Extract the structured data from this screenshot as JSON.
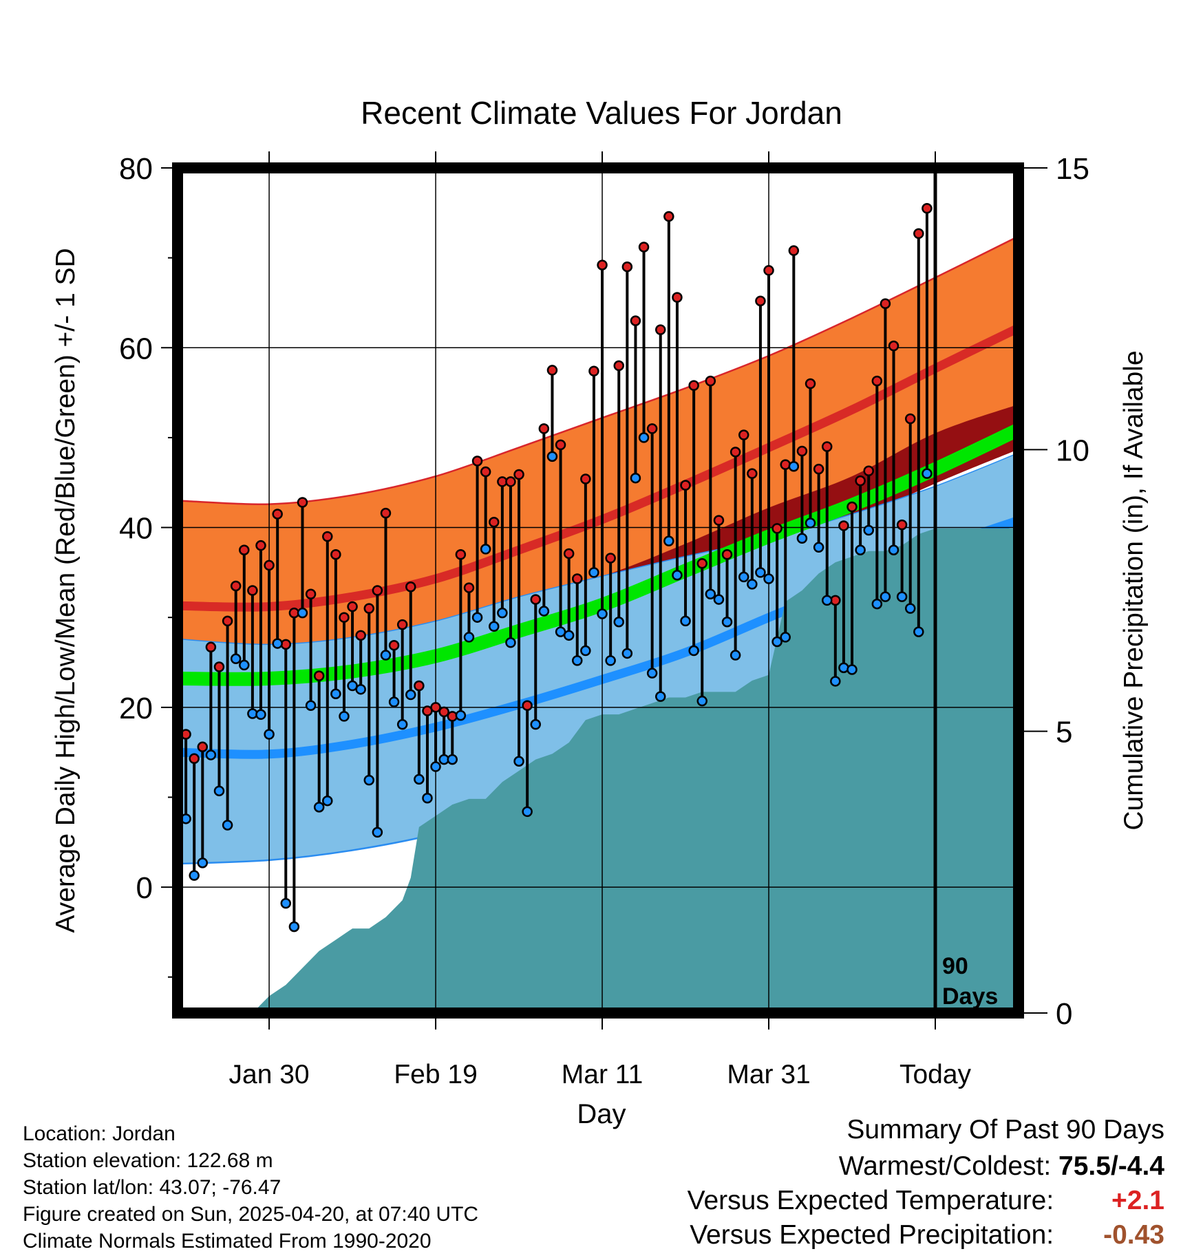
{
  "chart_data": {
    "type": "line",
    "title": "Recent Climate Values For Jordan",
    "xlabel": "Day",
    "ylabel_left": "Average Daily High/Low/Mean (Red/Blue/Green) +/- 1 SD",
    "ylabel_right": "Cumulative Precipitation (in), If Available",
    "x_ticks": [
      {
        "day": 10,
        "label": "Jan 30"
      },
      {
        "day": 30,
        "label": "Feb 19"
      },
      {
        "day": 50,
        "label": "Mar 11"
      },
      {
        "day": 70,
        "label": "Mar 31"
      },
      {
        "day": 90,
        "label": "Today"
      }
    ],
    "xlim": [
      -1,
      100
    ],
    "ylim_left": [
      -14,
      80
    ],
    "y_ticks_left": [
      "80",
      "60",
      "40",
      "20",
      "0"
    ],
    "ylim_right": [
      0,
      15
    ],
    "y_ticks_right": [
      "15",
      "10",
      "5",
      "0"
    ],
    "today_marker": {
      "day": 90,
      "label_line1": "90",
      "label_line2": "Days"
    },
    "normals": {
      "days": [
        -1,
        10,
        20,
        30,
        40,
        50,
        60,
        70,
        80,
        90,
        100
      ],
      "high_mean": [
        31.3,
        31.2,
        32.3,
        34.3,
        37.5,
        40.9,
        44.8,
        48.9,
        53.1,
        57.7,
        62.2
      ],
      "high_sd_upper": [
        43.0,
        42.6,
        43.6,
        45.7,
        48.9,
        52.2,
        55.5,
        59.1,
        63.3,
        67.8,
        72.4
      ],
      "high_sd_lower": [
        20.0,
        20.5,
        21.5,
        23.2,
        26.0,
        29.6,
        34.1,
        38.9,
        43.0,
        47.4,
        52.2
      ],
      "mean_mean": [
        23.2,
        23.2,
        24.0,
        25.7,
        28.5,
        31.4,
        35.2,
        39.0,
        42.5,
        46.5,
        50.9
      ],
      "mean_sd_upper": [
        27.6,
        27.0,
        27.8,
        29.6,
        32.3,
        34.6,
        38.2,
        42.2,
        45.7,
        50.5,
        53.7
      ],
      "mean_sd_lower": [
        20.6,
        20.7,
        21.8,
        23.7,
        26.1,
        28.6,
        33.0,
        37.1,
        40.7,
        44.9,
        48.7
      ],
      "low_mean": [
        15.0,
        14.8,
        15.9,
        17.8,
        20.3,
        23.1,
        26.1,
        30.0,
        33.8,
        37.6,
        40.8
      ],
      "low_sd_upper": [
        27.6,
        27.0,
        27.8,
        29.6,
        32.3,
        34.6,
        36.8,
        38.8,
        41.5,
        44.6,
        48.3
      ],
      "low_sd_lower": [
        2.6,
        3.0,
        4.1,
        5.9,
        8.5,
        12.3,
        16.9,
        21.2,
        25.5,
        29.8,
        34.0
      ]
    },
    "daily": {
      "start_day": 0,
      "highs": [
        17.0,
        14.3,
        15.6,
        26.7,
        24.5,
        29.6,
        33.5,
        37.5,
        33.0,
        38.0,
        35.8,
        41.5,
        27.0,
        30.5,
        42.8,
        32.6,
        23.5,
        39.0,
        37.0,
        30.0,
        31.2,
        28.0,
        31.0,
        33.0,
        41.6,
        26.9,
        29.2,
        33.4,
        22.4,
        19.6,
        20.0,
        19.5,
        19.0,
        37.0,
        33.3,
        47.4,
        46.2,
        40.6,
        45.1,
        45.1,
        45.9,
        20.2,
        32.0,
        51.0,
        57.5,
        49.2,
        37.1,
        34.3,
        45.4,
        57.4,
        69.2,
        36.6,
        58.0,
        69.0,
        63.0,
        71.2,
        51.0,
        62.0,
        74.6,
        65.6,
        44.7,
        55.8,
        36.0,
        56.3,
        40.8,
        37.0,
        48.4,
        50.3,
        46.0,
        65.2,
        68.6,
        39.9,
        47.0,
        70.8,
        48.5,
        56.0,
        46.5,
        49.0,
        31.9,
        40.2,
        42.3,
        45.2,
        46.3,
        56.3,
        64.9,
        60.2,
        40.3,
        52.1,
        72.7,
        75.5
      ],
      "lows": [
        7.6,
        1.3,
        2.7,
        14.7,
        10.7,
        6.9,
        25.4,
        24.7,
        19.3,
        19.2,
        17.0,
        27.1,
        -1.8,
        -4.4,
        30.5,
        20.2,
        8.9,
        9.6,
        21.5,
        19.0,
        22.4,
        22.0,
        11.9,
        6.1,
        25.8,
        20.6,
        18.1,
        21.4,
        12.0,
        9.9,
        13.4,
        14.2,
        14.2,
        19.1,
        27.8,
        30.0,
        37.6,
        29.0,
        30.5,
        27.2,
        14.0,
        8.4,
        18.1,
        30.7,
        47.9,
        28.4,
        28.0,
        25.2,
        26.3,
        35.0,
        30.4,
        25.2,
        29.5,
        26.0,
        45.5,
        50.0,
        23.8,
        21.2,
        38.5,
        34.7,
        29.6,
        26.3,
        20.7,
        32.6,
        32.0,
        29.5,
        25.8,
        34.5,
        33.7,
        35.0,
        34.3,
        27.3,
        27.8,
        46.8,
        38.8,
        40.5,
        37.8,
        31.9,
        22.9,
        24.4,
        24.2,
        37.5,
        39.7,
        31.5,
        32.3,
        37.5,
        32.3,
        31.0,
        28.4,
        46.0
      ]
    },
    "precip": {
      "days": [
        -1,
        8,
        10,
        12,
        14,
        16,
        18,
        20,
        22,
        24,
        26,
        27,
        28,
        30,
        32,
        34,
        36,
        38,
        40,
        42,
        44,
        46,
        48,
        50,
        52,
        54,
        56,
        58,
        60,
        62,
        64,
        66,
        68,
        70,
        72,
        74,
        76,
        78,
        80,
        82,
        84,
        86,
        88,
        90,
        100
      ],
      "values": [
        0,
        0,
        0.3,
        0.5,
        0.8,
        1.1,
        1.3,
        1.5,
        1.5,
        1.7,
        2.0,
        2.4,
        3.3,
        3.5,
        3.7,
        3.8,
        3.8,
        4.1,
        4.3,
        4.5,
        4.6,
        4.8,
        5.2,
        5.3,
        5.3,
        5.4,
        5.5,
        5.6,
        5.6,
        5.7,
        5.7,
        5.7,
        5.9,
        6.0,
        7.3,
        7.5,
        7.8,
        8.0,
        8.1,
        8.2,
        8.2,
        8.3,
        8.5,
        8.6,
        8.6
      ]
    },
    "colors": {
      "high_band": "#f57b30",
      "high_line": "#d82a26",
      "mean_band": "#950f12",
      "mean_line": "#00e600",
      "low_band": "#7fbfe8",
      "low_line": "#1e90ff",
      "low_edge": "#2a8cf0",
      "high_edge": "#d8262b",
      "precip": "#4a9ba3",
      "high_dot": "#dc2222",
      "low_dot": "#1e90ff"
    }
  },
  "info": {
    "location": "Location: Jordan",
    "elevation": "Station elevation: 122.68 m",
    "latlon": "Station lat/lon: 43.07; -76.47",
    "created": "Figure created on Sun, 2025-04-20, at 07:40 UTC",
    "normals": "Climate Normals Estimated From 1990-2020"
  },
  "summary": {
    "heading": "Summary Of Past 90 Days",
    "warmest_label": "Warmest/Coldest:",
    "warmest_value": "75.5/-4.4",
    "temp_label": "Versus Expected Temperature:",
    "temp_value": "+2.1",
    "temp_color": "#dc2222",
    "precip_label": "Versus Expected Precipitation:",
    "precip_value": "-0.43",
    "precip_color": "#a0522d"
  }
}
